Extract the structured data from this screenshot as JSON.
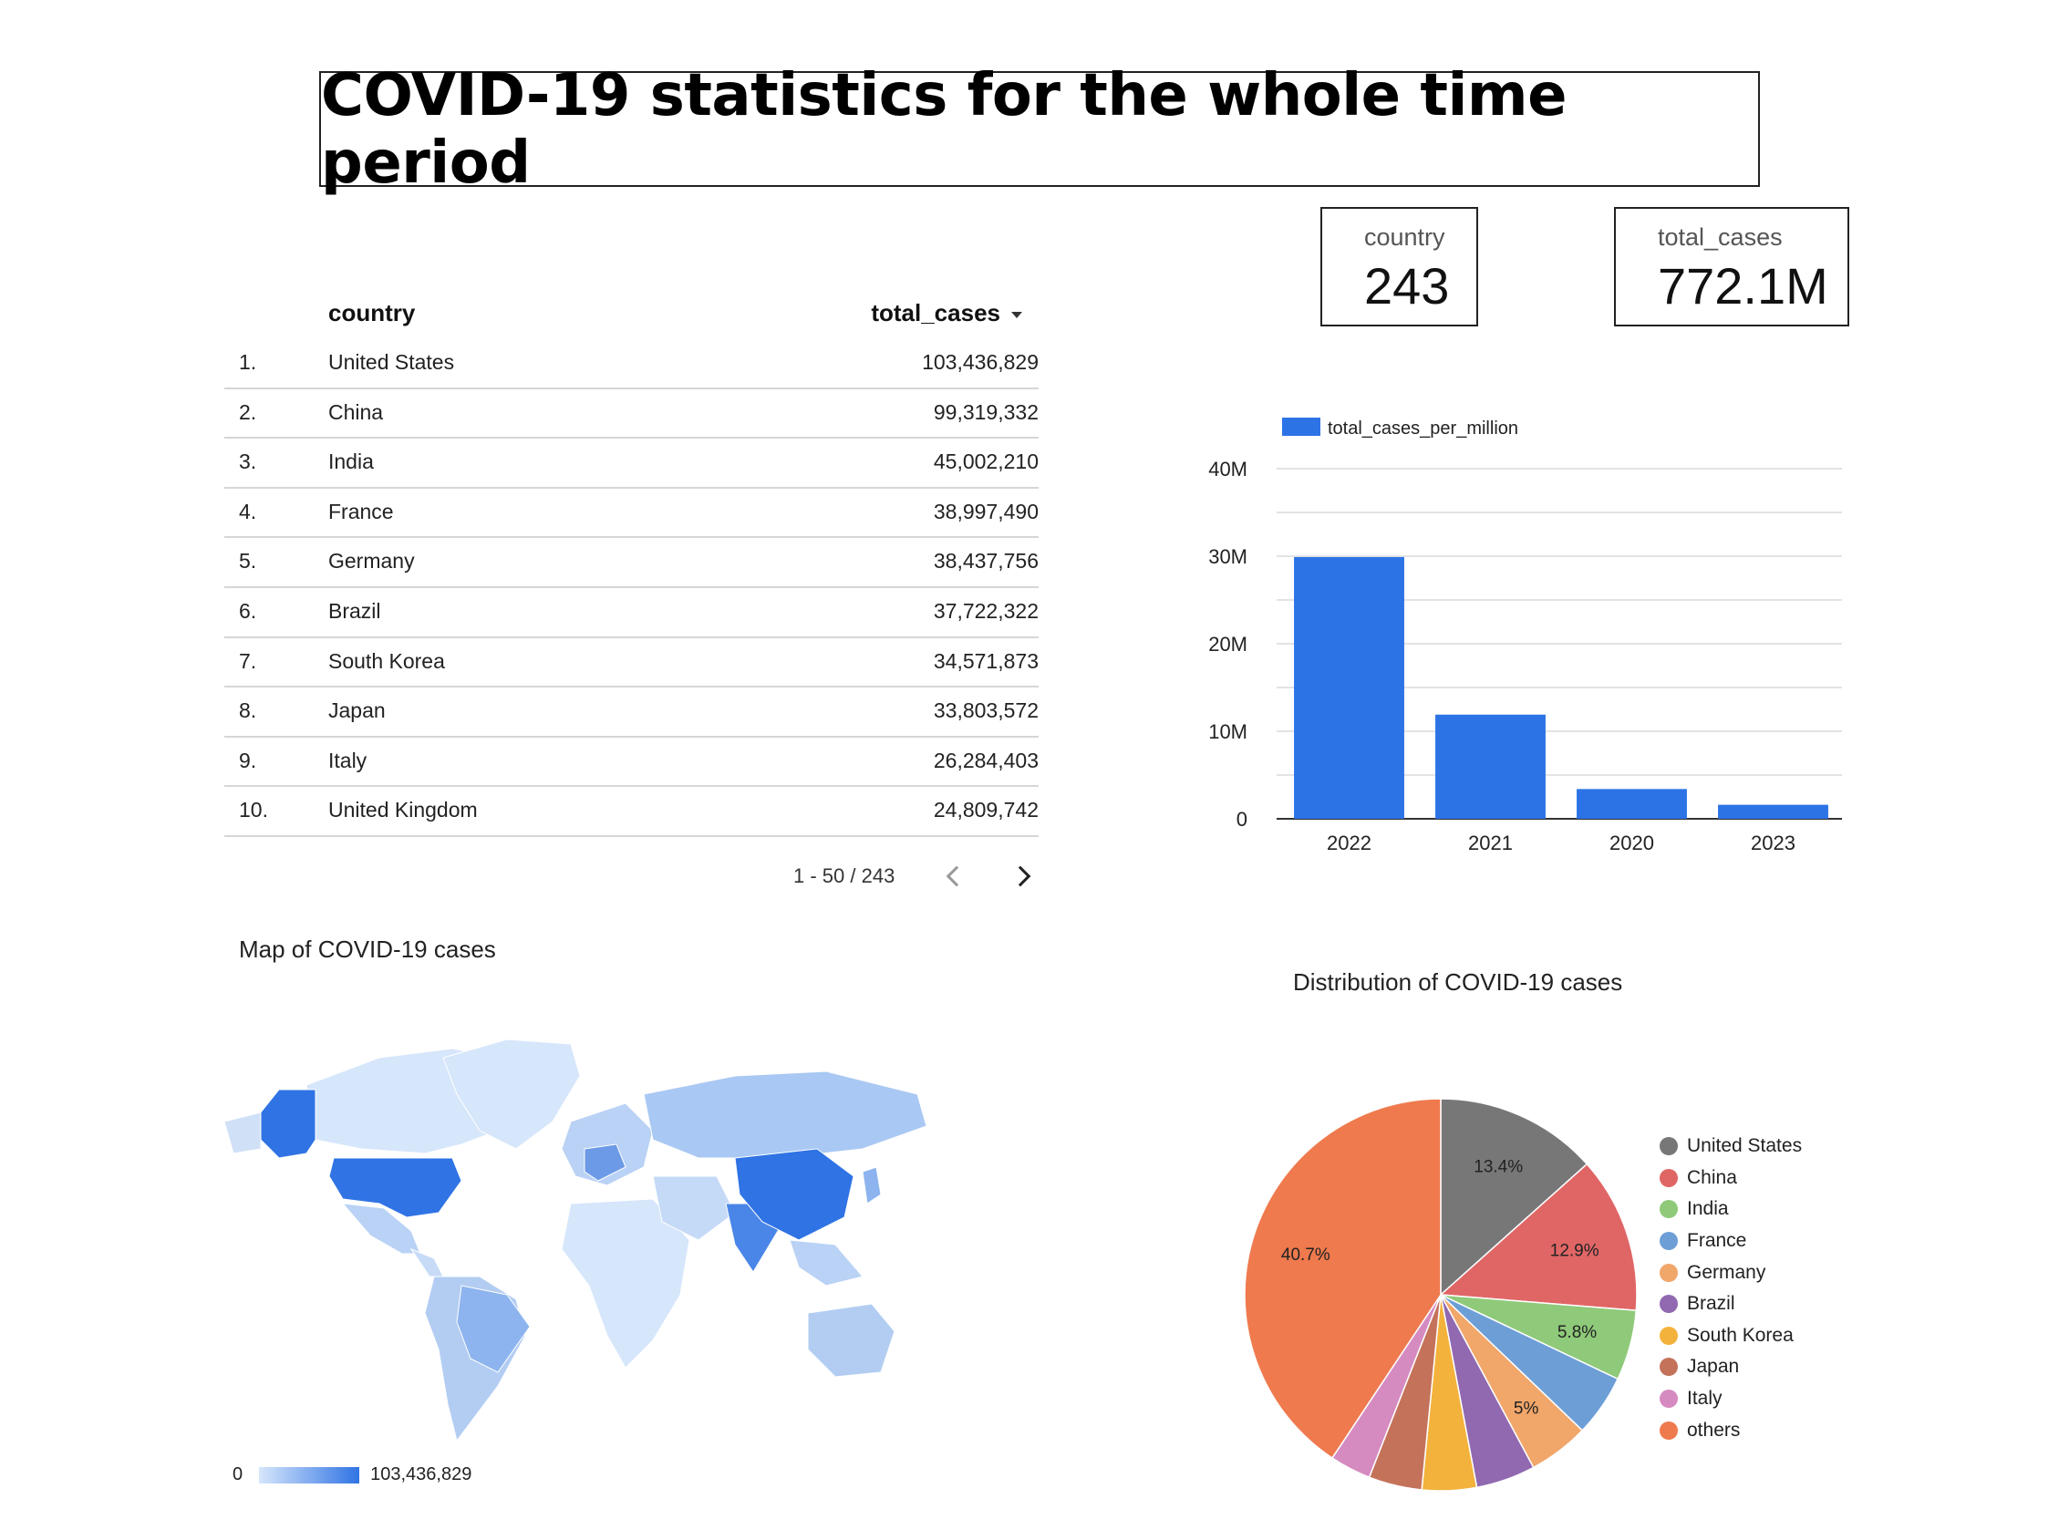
{
  "title": "COVID-19 statistics for the whole time period",
  "kpis": {
    "country": {
      "label": "country",
      "value": "243"
    },
    "total_cases": {
      "label": "total_cases",
      "value": "772.1M"
    }
  },
  "table": {
    "headers": {
      "country": "country",
      "total_cases": "total_cases"
    },
    "rows": [
      {
        "num": "1.",
        "country": "United States",
        "value": "103,436,829"
      },
      {
        "num": "2.",
        "country": "China",
        "value": "99,319,332"
      },
      {
        "num": "3.",
        "country": "India",
        "value": "45,002,210"
      },
      {
        "num": "4.",
        "country": "France",
        "value": "38,997,490"
      },
      {
        "num": "5.",
        "country": "Germany",
        "value": "38,437,756"
      },
      {
        "num": "6.",
        "country": "Brazil",
        "value": "37,722,322"
      },
      {
        "num": "7.",
        "country": "South Korea",
        "value": "34,571,873"
      },
      {
        "num": "8.",
        "country": "Japan",
        "value": "33,803,572"
      },
      {
        "num": "9.",
        "country": "Italy",
        "value": "26,284,403"
      },
      {
        "num": "10.",
        "country": "United Kingdom",
        "value": "24,809,742"
      }
    ],
    "pager": "1 - 50 / 243"
  },
  "map": {
    "title": "Map of COVID-19 cases",
    "legend_min": "0",
    "legend_max": "103,436,829"
  },
  "pie_title": "Distribution of COVID-19 cases",
  "colors": {
    "bar": "#2c73e6",
    "map_low": "#d6e6fb",
    "map_high": "#2f73e4"
  },
  "chart_data": [
    {
      "type": "bar",
      "categories": [
        "2022",
        "2021",
        "2020",
        "2023"
      ],
      "series": [
        {
          "name": "total_cases_per_million",
          "values": [
            29900000,
            11900000,
            3400000,
            1600000
          ]
        }
      ],
      "ylim": [
        0,
        40000000
      ],
      "yticks": [
        {
          "v": 0,
          "label": "0"
        },
        {
          "v": 10000000,
          "label": "10M"
        },
        {
          "v": 20000000,
          "label": "20M"
        },
        {
          "v": 30000000,
          "label": "30M"
        },
        {
          "v": 40000000,
          "label": "40M"
        }
      ],
      "legend": "top-left",
      "grid": true
    },
    {
      "type": "pie",
      "labels": [
        "United States",
        "China",
        "India",
        "France",
        "Germany",
        "Brazil",
        "South Korea",
        "Japan",
        "Italy",
        "others"
      ],
      "values": [
        13.4,
        12.9,
        5.8,
        5.1,
        5.0,
        4.9,
        4.5,
        4.4,
        3.4,
        40.7
      ],
      "slice_labels": [
        "13.4%",
        "12.9%",
        "5.8%",
        "",
        "5%",
        "",
        "",
        "",
        "",
        "40.7%"
      ],
      "colors": [
        "#777777",
        "#e06666",
        "#8fc97a",
        "#6d9ed6",
        "#f1a66a",
        "#9069b0",
        "#f3b23c",
        "#c4725a",
        "#d58bc0",
        "#ef7a4e"
      ],
      "legend": "right"
    }
  ]
}
